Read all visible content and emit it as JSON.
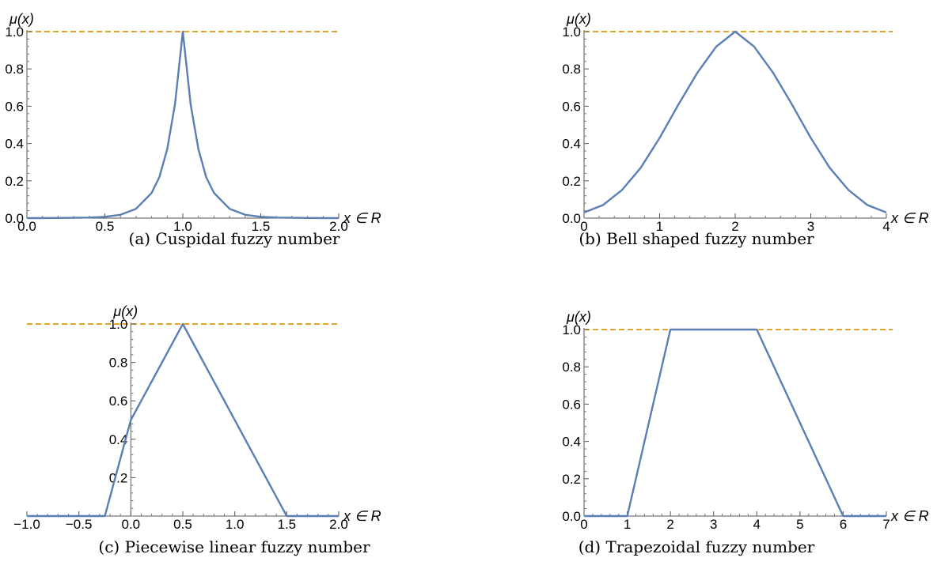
{
  "chart_data": [
    {
      "type": "line",
      "caption": "(a) Cuspidal fuzzy number",
      "xlabel": "x ∈ R",
      "ylabel": "μ(x)",
      "xlim": [
        0,
        2
      ],
      "ylim": [
        0,
        1
      ],
      "xticks": [
        0,
        0.5,
        1,
        1.5,
        2
      ],
      "xtick_labels": [
        "0.0",
        "0.5",
        "1.0",
        "1.5",
        "2.0"
      ],
      "yticks": [
        0,
        0.2,
        0.4,
        0.6,
        0.8,
        1
      ],
      "ytick_labels": [
        "0.0",
        "0.2",
        "0.4",
        "0.6",
        "0.8",
        "1.0"
      ],
      "series": [
        {
          "x": [
            0,
            0.2,
            0.4,
            0.5,
            0.6,
            0.7,
            0.8,
            0.85,
            0.9,
            0.95,
            1,
            1.05,
            1.1,
            1.15,
            1.2,
            1.3,
            1.4,
            1.5,
            1.6,
            1.8,
            2
          ],
          "y": [
            0,
            0.001,
            0.003,
            0.007,
            0.018,
            0.05,
            0.135,
            0.22,
            0.37,
            0.61,
            1,
            0.61,
            0.37,
            0.22,
            0.135,
            0.05,
            0.018,
            0.007,
            0.003,
            0.001,
            0
          ]
        }
      ],
      "reference_line": {
        "y": 1,
        "color": "#e3a42e",
        "dashed": true
      },
      "line_color": "#5b7fb5"
    },
    {
      "type": "line",
      "caption": "(b) Bell shaped fuzzy number",
      "xlabel": "x ∈ R",
      "ylabel": "μ(x)",
      "xlim": [
        0,
        4
      ],
      "ylim": [
        0,
        1
      ],
      "xticks": [
        0,
        1,
        2,
        3,
        4
      ],
      "xtick_labels": [
        "0",
        "1",
        "2",
        "3",
        "4"
      ],
      "yticks": [
        0,
        0.2,
        0.4,
        0.6,
        0.8,
        1
      ],
      "ytick_labels": [
        "0.0",
        "0.2",
        "0.4",
        "0.6",
        "0.8",
        "1.0"
      ],
      "series": [
        {
          "x": [
            0,
            0.25,
            0.5,
            0.75,
            1,
            1.25,
            1.5,
            1.75,
            2,
            2.25,
            2.5,
            2.75,
            3,
            3.25,
            3.5,
            3.75,
            4
          ],
          "y": [
            0.03,
            0.07,
            0.15,
            0.27,
            0.43,
            0.61,
            0.78,
            0.92,
            1,
            0.92,
            0.78,
            0.61,
            0.43,
            0.27,
            0.15,
            0.07,
            0.03
          ]
        }
      ],
      "reference_line": {
        "y": 1,
        "color": "#e3a42e",
        "dashed": true
      },
      "line_color": "#5b7fb5"
    },
    {
      "type": "line",
      "caption": "(c) Piecewise linear fuzzy number",
      "xlabel": "x ∈ R",
      "ylabel": "μ(x)",
      "xlim": [
        -1,
        2
      ],
      "ylim": [
        0,
        1
      ],
      "xticks": [
        -1,
        -0.5,
        0,
        0.5,
        1,
        1.5,
        2
      ],
      "xtick_labels": [
        "−1.0",
        "−0.5",
        "0.0",
        "0.5",
        "1.0",
        "1.5",
        "2.0"
      ],
      "yticks": [
        0.2,
        0.4,
        0.6,
        0.8,
        1
      ],
      "ytick_labels": [
        "0.2",
        "0.4",
        "0.6",
        "0.8",
        "1.0"
      ],
      "series": [
        {
          "x": [
            -1,
            -0.25,
            0,
            0.5,
            1.5,
            2
          ],
          "y": [
            0,
            0,
            0.5,
            1,
            0,
            0
          ]
        }
      ],
      "reference_line": {
        "y": 1,
        "color": "#e3a42e",
        "dashed": true
      },
      "line_color": "#5b7fb5"
    },
    {
      "type": "line",
      "caption": "(d) Trapezoidal fuzzy number",
      "xlabel": "x ∈ R",
      "ylabel": "μ(x)",
      "xlim": [
        0,
        7
      ],
      "ylim": [
        0,
        1
      ],
      "xticks": [
        0,
        1,
        2,
        3,
        4,
        5,
        6,
        7
      ],
      "xtick_labels": [
        "0",
        "1",
        "2",
        "3",
        "4",
        "5",
        "6",
        "7"
      ],
      "yticks": [
        0,
        0.2,
        0.4,
        0.6,
        0.8,
        1
      ],
      "ytick_labels": [
        "0.0",
        "0.2",
        "0.4",
        "0.6",
        "0.8",
        "1.0"
      ],
      "series": [
        {
          "x": [
            0,
            1,
            2,
            4,
            6,
            7
          ],
          "y": [
            0,
            0,
            1,
            1,
            0,
            0
          ]
        }
      ],
      "reference_line": {
        "y": 1,
        "color": "#e3a42e",
        "dashed": true
      },
      "line_color": "#5b7fb5"
    }
  ]
}
